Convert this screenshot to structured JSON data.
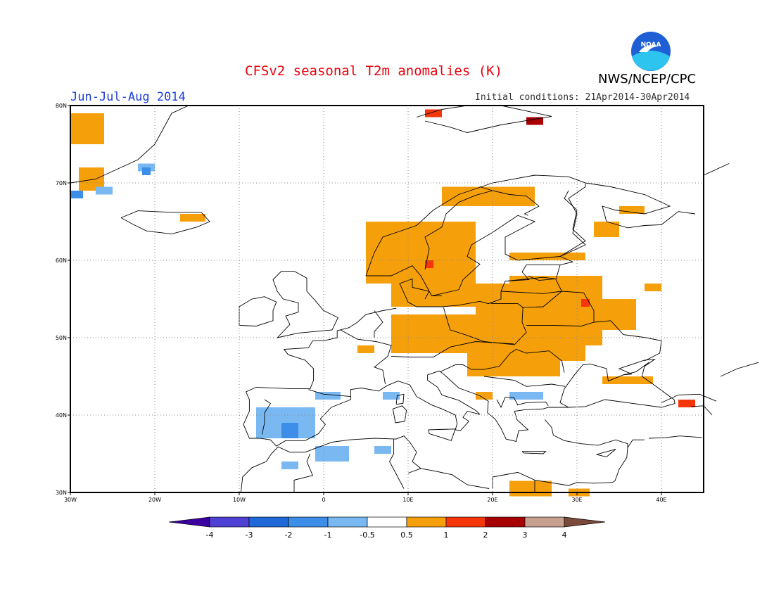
{
  "title": "CFSv2 seasonal T2m anomalies (K)",
  "agency": "NWS/NCEP/CPC",
  "season": "Jun-Jul-Aug 2014",
  "initial_conditions": "Initial conditions: 21Apr2014-30Apr2014",
  "logo": {
    "text": "NOAA",
    "colors": {
      "sky": "#1f5fd6",
      "wave": "#2ec4f0",
      "bird": "#ffffff"
    }
  },
  "map": {
    "extent": {
      "lon_min": -30,
      "lon_max": 45,
      "lat_min": 30,
      "lat_max": 80
    },
    "lat_ticks": [
      {
        "value": 80,
        "label": "80N"
      },
      {
        "value": 70,
        "label": "70N"
      },
      {
        "value": 60,
        "label": "60N"
      },
      {
        "value": 50,
        "label": "50N"
      },
      {
        "value": 40,
        "label": "40N"
      },
      {
        "value": 30,
        "label": "30N"
      }
    ],
    "lon_ticks": [
      {
        "value": -30,
        "label": "30W"
      },
      {
        "value": -20,
        "label": "20W"
      },
      {
        "value": -10,
        "label": "10W"
      },
      {
        "value": 0,
        "label": "0"
      },
      {
        "value": 10,
        "label": "10E"
      },
      {
        "value": 20,
        "label": "20E"
      },
      {
        "value": 30,
        "label": "30E"
      },
      {
        "value": 40,
        "label": "40E"
      }
    ],
    "anomaly_regions": [
      {
        "level": "0.5 to 1",
        "color": "#f5a00a",
        "lon": [
          -30,
          -26
        ],
        "lat": [
          75,
          79
        ]
      },
      {
        "level": "0.5 to 1",
        "color": "#f5a00a",
        "lon": [
          -29,
          -26
        ],
        "lat": [
          69,
          72
        ]
      },
      {
        "level": "0.5 to 1",
        "color": "#f5a00a",
        "lon": [
          -17,
          -14
        ],
        "lat": [
          65,
          66
        ]
      },
      {
        "level": "0.5 to 1",
        "color": "#f5a00a",
        "lon": [
          5,
          13
        ],
        "lat": [
          57,
          65
        ]
      },
      {
        "level": "0.5 to 1",
        "color": "#f5a00a",
        "lon": [
          12,
          18
        ],
        "lat": [
          59,
          65
        ]
      },
      {
        "level": "0.5 to 1",
        "color": "#f5a00a",
        "lon": [
          14,
          25
        ],
        "lat": [
          67,
          69.5
        ]
      },
      {
        "level": "0.5 to 1",
        "color": "#f5a00a",
        "lon": [
          22,
          31
        ],
        "lat": [
          60,
          61
        ]
      },
      {
        "level": "0.5 to 1",
        "color": "#f5a00a",
        "lon": [
          32,
          35
        ],
        "lat": [
          63,
          65
        ]
      },
      {
        "level": "0.5 to 1",
        "color": "#f5a00a",
        "lon": [
          35,
          38
        ],
        "lat": [
          66,
          67
        ]
      },
      {
        "level": "0.5 to 1",
        "color": "#f5a00a",
        "lon": [
          8,
          18
        ],
        "lat": [
          54,
          60
        ]
      },
      {
        "level": "0.5 to 1",
        "color": "#f5a00a",
        "lon": [
          8,
          22
        ],
        "lat": [
          48,
          53
        ]
      },
      {
        "level": "0.5 to 1",
        "color": "#f5a00a",
        "lon": [
          18,
          31
        ],
        "lat": [
          47,
          57
        ]
      },
      {
        "level": "0.5 to 1",
        "color": "#f5a00a",
        "lon": [
          22,
          33
        ],
        "lat": [
          49,
          58
        ]
      },
      {
        "level": "0.5 to 1",
        "color": "#f5a00a",
        "lon": [
          31,
          37
        ],
        "lat": [
          51,
          55
        ]
      },
      {
        "level": "0.5 to 1",
        "color": "#f5a00a",
        "lon": [
          17,
          28
        ],
        "lat": [
          45,
          49
        ]
      },
      {
        "level": "0.5 to 1",
        "color": "#f5a00a",
        "lon": [
          22,
          27
        ],
        "lat": [
          29.5,
          31.5
        ]
      },
      {
        "level": "0.5 to 1",
        "color": "#f5a00a",
        "lon": [
          29,
          31.5
        ],
        "lat": [
          29.5,
          30.5
        ]
      },
      {
        "level": "0.5 to 1",
        "color": "#f5a00a",
        "lon": [
          38,
          40
        ],
        "lat": [
          56,
          57
        ]
      },
      {
        "level": "0.5 to 1",
        "color": "#f5a00a",
        "lon": [
          33,
          39
        ],
        "lat": [
          44,
          45
        ]
      },
      {
        "level": "0.5 to 1",
        "color": "#f5a00a",
        "lon": [
          4,
          6
        ],
        "lat": [
          48,
          49
        ]
      },
      {
        "level": "0.5 to 1",
        "color": "#f5a00a",
        "lon": [
          18,
          20
        ],
        "lat": [
          42,
          43
        ]
      },
      {
        "level": "1 to 2",
        "color": "#f4360a",
        "lon": [
          12,
          14
        ],
        "lat": [
          78.5,
          79.5
        ]
      },
      {
        "level": "1 to 2",
        "color": "#f4360a",
        "lon": [
          12,
          13
        ],
        "lat": [
          59,
          60
        ]
      },
      {
        "level": "1 to 2",
        "color": "#f4360a",
        "lon": [
          30.5,
          31.5
        ],
        "lat": [
          54,
          55
        ]
      },
      {
        "level": "1 to 2",
        "color": "#f4360a",
        "lon": [
          42,
          44
        ],
        "lat": [
          41,
          42
        ]
      },
      {
        "level": "2 to 3",
        "color": "#a80000",
        "lon": [
          24,
          26
        ],
        "lat": [
          77.5,
          78.5
        ]
      },
      {
        "level": "-1 to -0.5",
        "color": "#7ab8f2",
        "lon": [
          -22,
          -20
        ],
        "lat": [
          71.5,
          72.5
        ]
      },
      {
        "level": "-1 to -0.5",
        "color": "#7ab8f2",
        "lon": [
          -27,
          -25
        ],
        "lat": [
          68.5,
          69.5
        ]
      },
      {
        "level": "-1 to -0.5",
        "color": "#7ab8f2",
        "lon": [
          -8,
          -1
        ],
        "lat": [
          37,
          41
        ]
      },
      {
        "level": "-1 to -0.5",
        "color": "#7ab8f2",
        "lon": [
          -1,
          2
        ],
        "lat": [
          42,
          43
        ]
      },
      {
        "level": "-1 to -0.5",
        "color": "#7ab8f2",
        "lon": [
          -1,
          3
        ],
        "lat": [
          34,
          36
        ]
      },
      {
        "level": "-1 to -0.5",
        "color": "#7ab8f2",
        "lon": [
          6,
          8
        ],
        "lat": [
          35,
          36
        ]
      },
      {
        "level": "-1 to -0.5",
        "color": "#7ab8f2",
        "lon": [
          7,
          9
        ],
        "lat": [
          42,
          43
        ]
      },
      {
        "level": "-1 to -0.5",
        "color": "#7ab8f2",
        "lon": [
          22,
          26
        ],
        "lat": [
          42,
          43
        ]
      },
      {
        "level": "-1 to -0.5",
        "color": "#7ab8f2",
        "lon": [
          -5,
          -3
        ],
        "lat": [
          33,
          34
        ]
      },
      {
        "level": "-2 to -1",
        "color": "#3c8ee8",
        "lon": [
          -5,
          -3
        ],
        "lat": [
          37,
          39
        ]
      },
      {
        "level": "-2 to -1",
        "color": "#3c8ee8",
        "lon": [
          -21.5,
          -20.5
        ],
        "lat": [
          71,
          72
        ]
      },
      {
        "level": "-2 to -1",
        "color": "#3c8ee8",
        "lon": [
          -30,
          -28.5
        ],
        "lat": [
          68,
          69
        ]
      }
    ]
  },
  "colorbar": {
    "bins": [
      {
        "color": "#3c00a0"
      },
      {
        "color": "#4f41d4"
      },
      {
        "color": "#1f68d8"
      },
      {
        "color": "#3c8ee8"
      },
      {
        "color": "#7ab8f2"
      },
      {
        "color": "#ffffff"
      },
      {
        "color": "#f5a00a"
      },
      {
        "color": "#f4360a"
      },
      {
        "color": "#a80000"
      },
      {
        "color": "#c8a090"
      },
      {
        "color": "#7a4a3a"
      }
    ],
    "labels": [
      "-4",
      "-3",
      "-2",
      "-1",
      "-0.5",
      "0.5",
      "1",
      "2",
      "3",
      "4"
    ]
  }
}
